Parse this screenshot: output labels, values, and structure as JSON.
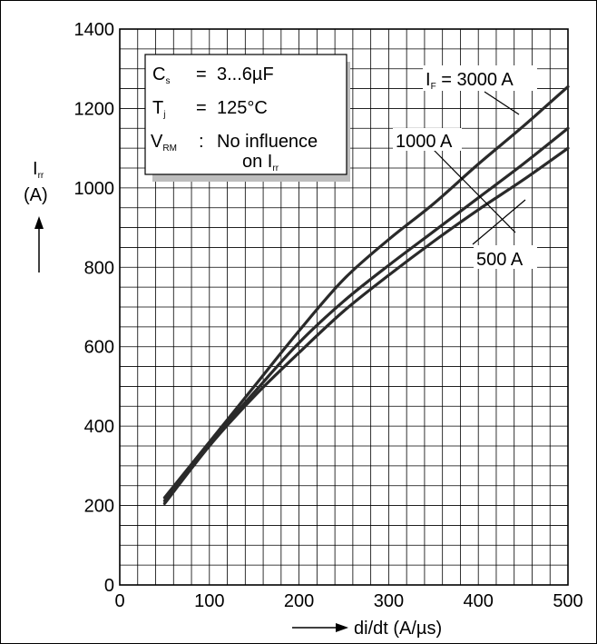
{
  "chart_data": {
    "type": "line",
    "xlim": [
      0,
      500
    ],
    "ylim": [
      0,
      1400
    ],
    "x_ticks": [
      "0",
      "100",
      "200",
      "300",
      "400",
      "500"
    ],
    "y_ticks": [
      "0",
      "200",
      "400",
      "600",
      "800",
      "1000",
      "1200",
      "1400"
    ],
    "x_minor_step": 20,
    "y_minor_step": 50,
    "grid": true,
    "xlabel": "di/dt (A/µs)",
    "ylabel": {
      "main": "I",
      "sub": "rr",
      "unit": "(A)"
    },
    "series": [
      {
        "name": "3000 A",
        "x": [
          50,
          100,
          150,
          200,
          250,
          300,
          350,
          400,
          450,
          500
        ],
        "y": [
          220,
          360,
          500,
          640,
          770,
          870,
          960,
          1060,
          1155,
          1255
        ]
      },
      {
        "name": "1000 A",
        "x": [
          50,
          100,
          150,
          200,
          250,
          300,
          350,
          400,
          450,
          500
        ],
        "y": [
          212,
          355,
          485,
          610,
          715,
          805,
          890,
          975,
          1060,
          1150
        ]
      },
      {
        "name": "500 A",
        "x": [
          50,
          100,
          150,
          200,
          250,
          300,
          350,
          400,
          450,
          500
        ],
        "y": [
          205,
          350,
          475,
          585,
          690,
          780,
          865,
          945,
          1020,
          1100
        ]
      }
    ],
    "annotations": {
      "curve_3000": {
        "prefix": "I",
        "sub": "F",
        "text": " = 3000 A"
      },
      "curve_1000": "1000 A",
      "curve_500": "500 A"
    },
    "legend_box": {
      "placement": "top-left",
      "rows": [
        {
          "sym": "C",
          "sub": "s",
          "sep": "=",
          "val": "3...6µF"
        },
        {
          "sym": "T",
          "sub": "j",
          "sep": "=",
          "val": "125°C"
        },
        {
          "sym": "V",
          "sub": "RM",
          "sep": ":",
          "val": "No influence",
          "val2": "on I",
          "val2sub": "rr"
        }
      ]
    }
  }
}
